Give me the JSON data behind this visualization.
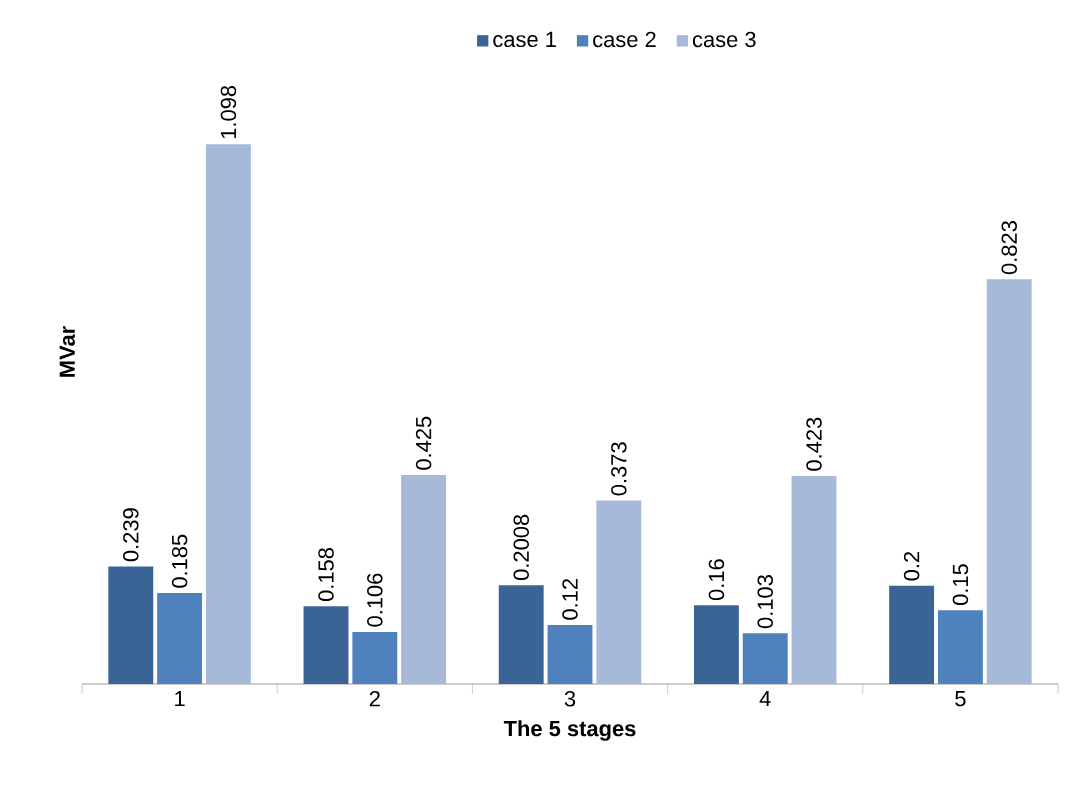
{
  "chart_data": {
    "type": "bar",
    "xlabel": "The 5 stages",
    "ylabel": "MVar",
    "categories": [
      "1",
      "2",
      "3",
      "4",
      "5"
    ],
    "series": [
      {
        "name": "case 1",
        "color": "#3b6496",
        "values": [
          0.239,
          0.158,
          0.2008,
          0.16,
          0.2
        ]
      },
      {
        "name": "case 2",
        "color": "#4f81bd",
        "values": [
          0.185,
          0.106,
          0.12,
          0.103,
          0.15
        ]
      },
      {
        "name": "case 3",
        "color": "#a6b9d9",
        "values": [
          1.098,
          0.425,
          0.373,
          0.423,
          0.823
        ]
      }
    ],
    "tick_labels": "x",
    "data_labels": true,
    "legend": "top",
    "grid": false
  }
}
